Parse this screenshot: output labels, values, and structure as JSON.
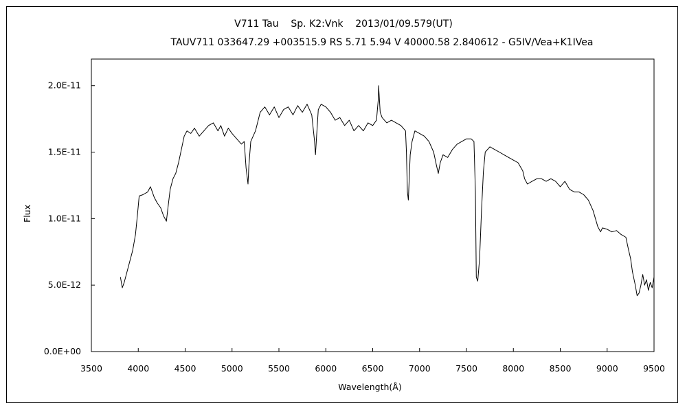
{
  "chart_data": {
    "type": "line",
    "title": "V711 Tau    Sp. K2:Vnk    2013/01/09.579(UT)",
    "subtitle": "TAUV711 033647.29 +003515.9 RS 5.71 5.94 V 40000.58 2.840612 - G5IV/Vea+K1IVea",
    "xlabel": "Wavelength(Å)",
    "ylabel": "Flux",
    "xlim": [
      3500,
      9500
    ],
    "ylim": [
      0,
      2.2e-11
    ],
    "x_ticks": [
      3500,
      4000,
      4500,
      5000,
      5500,
      6000,
      6500,
      7000,
      7500,
      8000,
      8500,
      9000,
      9500
    ],
    "x_tick_labels": [
      "3500",
      "4000",
      "4500",
      "5000",
      "5500",
      "6000",
      "6500",
      "7000",
      "7500",
      "8000",
      "8500",
      "9000",
      "9500"
    ],
    "y_ticks": [
      0,
      5e-12,
      1e-11,
      1.5e-11,
      2e-11
    ],
    "y_tick_labels": [
      "0.0E+00",
      "5.0E-12",
      "1.0E-11",
      "1.5E-11",
      "2.0E-11"
    ],
    "grid": false,
    "legend": false,
    "line_color": "#000000",
    "series": [
      {
        "x": [
          3810,
          3830,
          3850,
          3880,
          3910,
          3940,
          3970,
          3990,
          4010,
          4050,
          4100,
          4130,
          4170,
          4200,
          4240,
          4270,
          4300,
          4320,
          4340,
          4370,
          4400,
          4430,
          4460,
          4490,
          4520,
          4560,
          4600,
          4650,
          4700,
          4750,
          4800,
          4850,
          4880,
          4920,
          4960,
          5000,
          5050,
          5100,
          5130,
          5150,
          5170,
          5180,
          5200,
          5250,
          5300,
          5350,
          5400,
          5450,
          5500,
          5550,
          5600,
          5650,
          5700,
          5750,
          5800,
          5850,
          5880,
          5890,
          5900,
          5920,
          5950,
          6000,
          6050,
          6100,
          6150,
          6200,
          6250,
          6300,
          6350,
          6400,
          6450,
          6500,
          6540,
          6560,
          6563,
          6580,
          6600,
          6650,
          6700,
          6750,
          6800,
          6850,
          6860,
          6870,
          6880,
          6900,
          6920,
          6950,
          7000,
          7050,
          7100,
          7150,
          7180,
          7200,
          7220,
          7250,
          7300,
          7350,
          7400,
          7450,
          7500,
          7550,
          7580,
          7595,
          7605,
          7620,
          7640,
          7660,
          7680,
          7700,
          7750,
          7800,
          7850,
          7900,
          7950,
          8000,
          8050,
          8100,
          8120,
          8150,
          8200,
          8250,
          8300,
          8350,
          8400,
          8450,
          8500,
          8550,
          8600,
          8650,
          8700,
          8750,
          8800,
          8850,
          8900,
          8930,
          8950,
          9000,
          9050,
          9100,
          9150,
          9200,
          9230,
          9250,
          9270,
          9300,
          9320,
          9340,
          9360,
          9380,
          9400,
          9420,
          9440,
          9460,
          9480,
          9500
        ],
        "y": [
          5.6e-12,
          4.8e-12,
          5.2e-12,
          6e-12,
          6.8e-12,
          7.6e-12,
          8.8e-12,
          1.02e-11,
          1.17e-11,
          1.18e-11,
          1.2e-11,
          1.24e-11,
          1.16e-11,
          1.12e-11,
          1.08e-11,
          1.02e-11,
          9.8e-12,
          1.1e-11,
          1.22e-11,
          1.3e-11,
          1.34e-11,
          1.42e-11,
          1.52e-11,
          1.62e-11,
          1.66e-11,
          1.64e-11,
          1.68e-11,
          1.62e-11,
          1.66e-11,
          1.7e-11,
          1.72e-11,
          1.66e-11,
          1.7e-11,
          1.62e-11,
          1.68e-11,
          1.64e-11,
          1.6e-11,
          1.56e-11,
          1.58e-11,
          1.38e-11,
          1.26e-11,
          1.4e-11,
          1.58e-11,
          1.66e-11,
          1.8e-11,
          1.84e-11,
          1.78e-11,
          1.84e-11,
          1.76e-11,
          1.82e-11,
          1.84e-11,
          1.78e-11,
          1.85e-11,
          1.8e-11,
          1.86e-11,
          1.78e-11,
          1.58e-11,
          1.48e-11,
          1.6e-11,
          1.82e-11,
          1.86e-11,
          1.84e-11,
          1.8e-11,
          1.74e-11,
          1.76e-11,
          1.7e-11,
          1.74e-11,
          1.66e-11,
          1.7e-11,
          1.66e-11,
          1.72e-11,
          1.7e-11,
          1.74e-11,
          1.9e-11,
          2e-11,
          1.8e-11,
          1.76e-11,
          1.72e-11,
          1.74e-11,
          1.72e-11,
          1.7e-11,
          1.66e-11,
          1.5e-11,
          1.2e-11,
          1.14e-11,
          1.48e-11,
          1.58e-11,
          1.66e-11,
          1.64e-11,
          1.62e-11,
          1.58e-11,
          1.5e-11,
          1.4e-11,
          1.34e-11,
          1.42e-11,
          1.48e-11,
          1.46e-11,
          1.52e-11,
          1.56e-11,
          1.58e-11,
          1.6e-11,
          1.6e-11,
          1.58e-11,
          1.2e-11,
          5.6e-12,
          5.3e-12,
          7e-12,
          1.05e-11,
          1.35e-11,
          1.5e-11,
          1.54e-11,
          1.52e-11,
          1.5e-11,
          1.48e-11,
          1.46e-11,
          1.44e-11,
          1.42e-11,
          1.36e-11,
          1.3e-11,
          1.26e-11,
          1.28e-11,
          1.3e-11,
          1.3e-11,
          1.28e-11,
          1.3e-11,
          1.28e-11,
          1.24e-11,
          1.28e-11,
          1.22e-11,
          1.2e-11,
          1.2e-11,
          1.18e-11,
          1.14e-11,
          1.06e-11,
          9.4e-12,
          9e-12,
          9.3e-12,
          9.2e-12,
          9e-12,
          9.1e-12,
          8.8e-12,
          8.6e-12,
          7.6e-12,
          7e-12,
          6e-12,
          5e-12,
          4.2e-12,
          4.4e-12,
          5e-12,
          5.8e-12,
          5e-12,
          5.4e-12,
          4.6e-12,
          5.2e-12,
          4.8e-12,
          5.6e-12
        ]
      }
    ]
  }
}
